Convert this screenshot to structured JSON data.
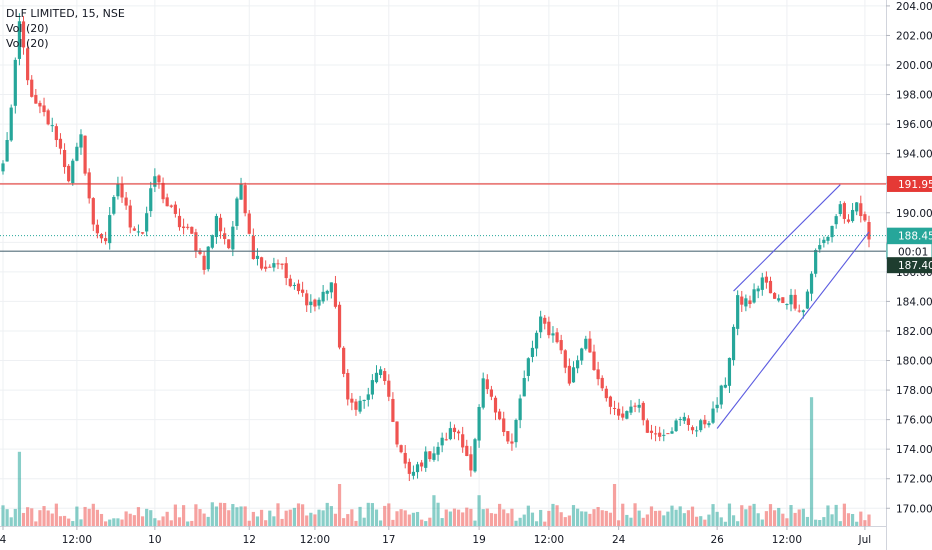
{
  "legend": {
    "symbol_line": "DLF LIMITED, 15, NSE",
    "vol_a": "Vol (20)",
    "vol_b": "Vol (20)"
  },
  "colors": {
    "up": "#26a69a",
    "down": "#ef5350",
    "resistance_line": "#e53935",
    "support_line": "#546e7a",
    "channel": "#5c5ce0",
    "last_price_bg": "#26a69a",
    "support_label_bg": "#1e3d2f",
    "resistance_label_bg": "#e53935"
  },
  "chart_data": {
    "type": "candlestick",
    "y_axis": {
      "ylim": [
        168.8,
        204.4
      ],
      "ticks": [
        "204.00",
        "202.00",
        "200.00",
        "198.00",
        "196.00",
        "194.00",
        "192.00",
        "190.00",
        "188.00",
        "186.00",
        "184.00",
        "182.00",
        "180.00",
        "178.00",
        "176.00",
        "174.00",
        "172.00",
        "170.00"
      ],
      "tick_values": [
        204,
        202,
        200,
        198,
        196,
        194,
        192,
        190,
        188,
        186,
        184,
        182,
        180,
        178,
        176,
        174,
        172,
        170
      ]
    },
    "x_axis": {
      "labels": [
        "4",
        "12:00",
        "10",
        "12",
        "12:00",
        "17",
        "19",
        "12:00",
        "24",
        "26",
        "12:00",
        "Jul"
      ],
      "label_index": [
        0,
        18,
        37,
        60,
        76,
        94,
        116,
        133,
        150,
        174,
        191,
        210
      ]
    },
    "bar_count": 212,
    "anchors": [
      [
        0,
        193.2
      ],
      [
        2,
        197.0
      ],
      [
        4,
        202.8
      ],
      [
        7,
        197.5
      ],
      [
        10,
        196.6
      ],
      [
        13,
        195.2
      ],
      [
        16,
        192.4
      ],
      [
        19,
        195.0
      ],
      [
        22,
        189.0
      ],
      [
        25,
        188.2
      ],
      [
        28,
        192.0
      ],
      [
        31,
        189.3
      ],
      [
        34,
        188.7
      ],
      [
        37,
        192.5
      ],
      [
        40,
        190.5
      ],
      [
        43,
        189.2
      ],
      [
        46,
        188.4
      ],
      [
        49,
        186.5
      ],
      [
        52,
        189.6
      ],
      [
        55,
        187.7
      ],
      [
        58,
        192.0
      ],
      [
        61,
        187.2
      ],
      [
        64,
        186.4
      ],
      [
        67,
        186.8
      ],
      [
        70,
        185.0
      ],
      [
        73,
        184.4
      ],
      [
        76,
        183.7
      ],
      [
        80,
        185.3
      ],
      [
        84,
        177.0
      ],
      [
        88,
        177.2
      ],
      [
        92,
        179.6
      ],
      [
        96,
        174.6
      ],
      [
        99,
        172.0
      ],
      [
        102,
        173.2
      ],
      [
        106,
        174.2
      ],
      [
        110,
        175.4
      ],
      [
        114,
        173.0
      ],
      [
        117,
        178.5
      ],
      [
        121,
        175.7
      ],
      [
        124,
        174.6
      ],
      [
        128,
        180.0
      ],
      [
        131,
        182.6
      ],
      [
        135,
        181.5
      ],
      [
        138,
        178.6
      ],
      [
        142,
        181.7
      ],
      [
        146,
        177.7
      ],
      [
        150,
        176.0
      ],
      [
        154,
        177.2
      ],
      [
        158,
        175.0
      ],
      [
        162,
        175.4
      ],
      [
        166,
        176.0
      ],
      [
        169,
        175.3
      ],
      [
        173,
        176.4
      ],
      [
        176,
        178.6
      ],
      [
        179,
        184.0
      ],
      [
        182,
        184.0
      ],
      [
        185,
        185.6
      ],
      [
        188,
        184.0
      ],
      [
        192,
        184.2
      ],
      [
        195,
        183.4
      ],
      [
        198,
        187.3
      ],
      [
        201,
        188.5
      ],
      [
        204,
        190.5
      ],
      [
        206,
        189.0
      ],
      [
        208,
        190.6
      ],
      [
        211,
        188.4
      ]
    ],
    "last_price": 188.45,
    "last_price_label": "188.45",
    "countdown_label": "00:01",
    "horizontal_lines": [
      {
        "name": "resistance",
        "value": 191.95,
        "label": "191.95"
      },
      {
        "name": "support",
        "value": 187.4,
        "label": "187.40"
      }
    ],
    "channel_lines": [
      {
        "from": [
          174,
          175.4
        ],
        "to": [
          211,
          188.7
        ]
      },
      {
        "from": [
          178,
          184.7
        ],
        "to": [
          204,
          191.9
        ]
      }
    ],
    "volume": {
      "spikes": [
        {
          "bar": 4,
          "rel": 0.53
        },
        {
          "bar": 197,
          "rel": 0.92
        },
        {
          "bar": 149,
          "rel": 0.3
        },
        {
          "bar": 82,
          "rel": 0.3
        },
        {
          "bar": 105,
          "rel": 0.22
        },
        {
          "bar": 116,
          "rel": 0.22
        }
      ]
    }
  }
}
